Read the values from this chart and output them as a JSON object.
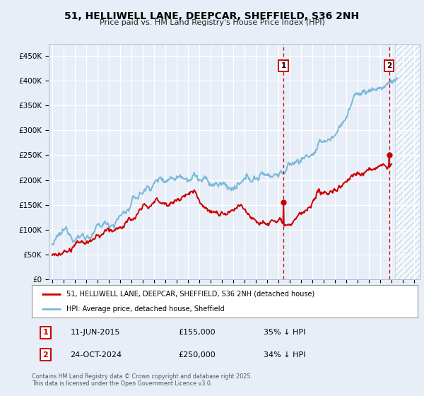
{
  "title": "51, HELLIWELL LANE, DEEPCAR, SHEFFIELD, S36 2NH",
  "subtitle": "Price paid vs. HM Land Registry's House Price Index (HPI)",
  "bg_color": "#e8eef8",
  "plot_bg_color": "#e8eef8",
  "hpi_color": "#7ab8d8",
  "price_color": "#cc0000",
  "dashed_color": "#cc0000",
  "legend_label_price": "51, HELLIWELL LANE, DEEPCAR, SHEFFIELD, S36 2NH (detached house)",
  "legend_label_hpi": "HPI: Average price, detached house, Sheffield",
  "sale1_date": "11-JUN-2015",
  "sale1_price": "£155,000",
  "sale1_hpi": "35% ↓ HPI",
  "sale1_label": "1",
  "sale2_date": "24-OCT-2024",
  "sale2_price": "£250,000",
  "sale2_hpi": "34% ↓ HPI",
  "sale2_label": "2",
  "footer": "Contains HM Land Registry data © Crown copyright and database right 2025.\nThis data is licensed under the Open Government Licence v3.0.",
  "ylim": [
    0,
    475000
  ],
  "yticks": [
    0,
    50000,
    100000,
    150000,
    200000,
    250000,
    300000,
    350000,
    400000,
    450000
  ],
  "xlim_start": 1994.7,
  "xlim_end": 2027.5,
  "sale1_x": 2015.44,
  "sale1_y": 155000,
  "sale2_x": 2024.81,
  "sale2_y": 250000,
  "hatch_start": 2025.3,
  "hatch_end": 2027.5,
  "hpi_start_year": 1995,
  "hpi_end_year": 2025
}
